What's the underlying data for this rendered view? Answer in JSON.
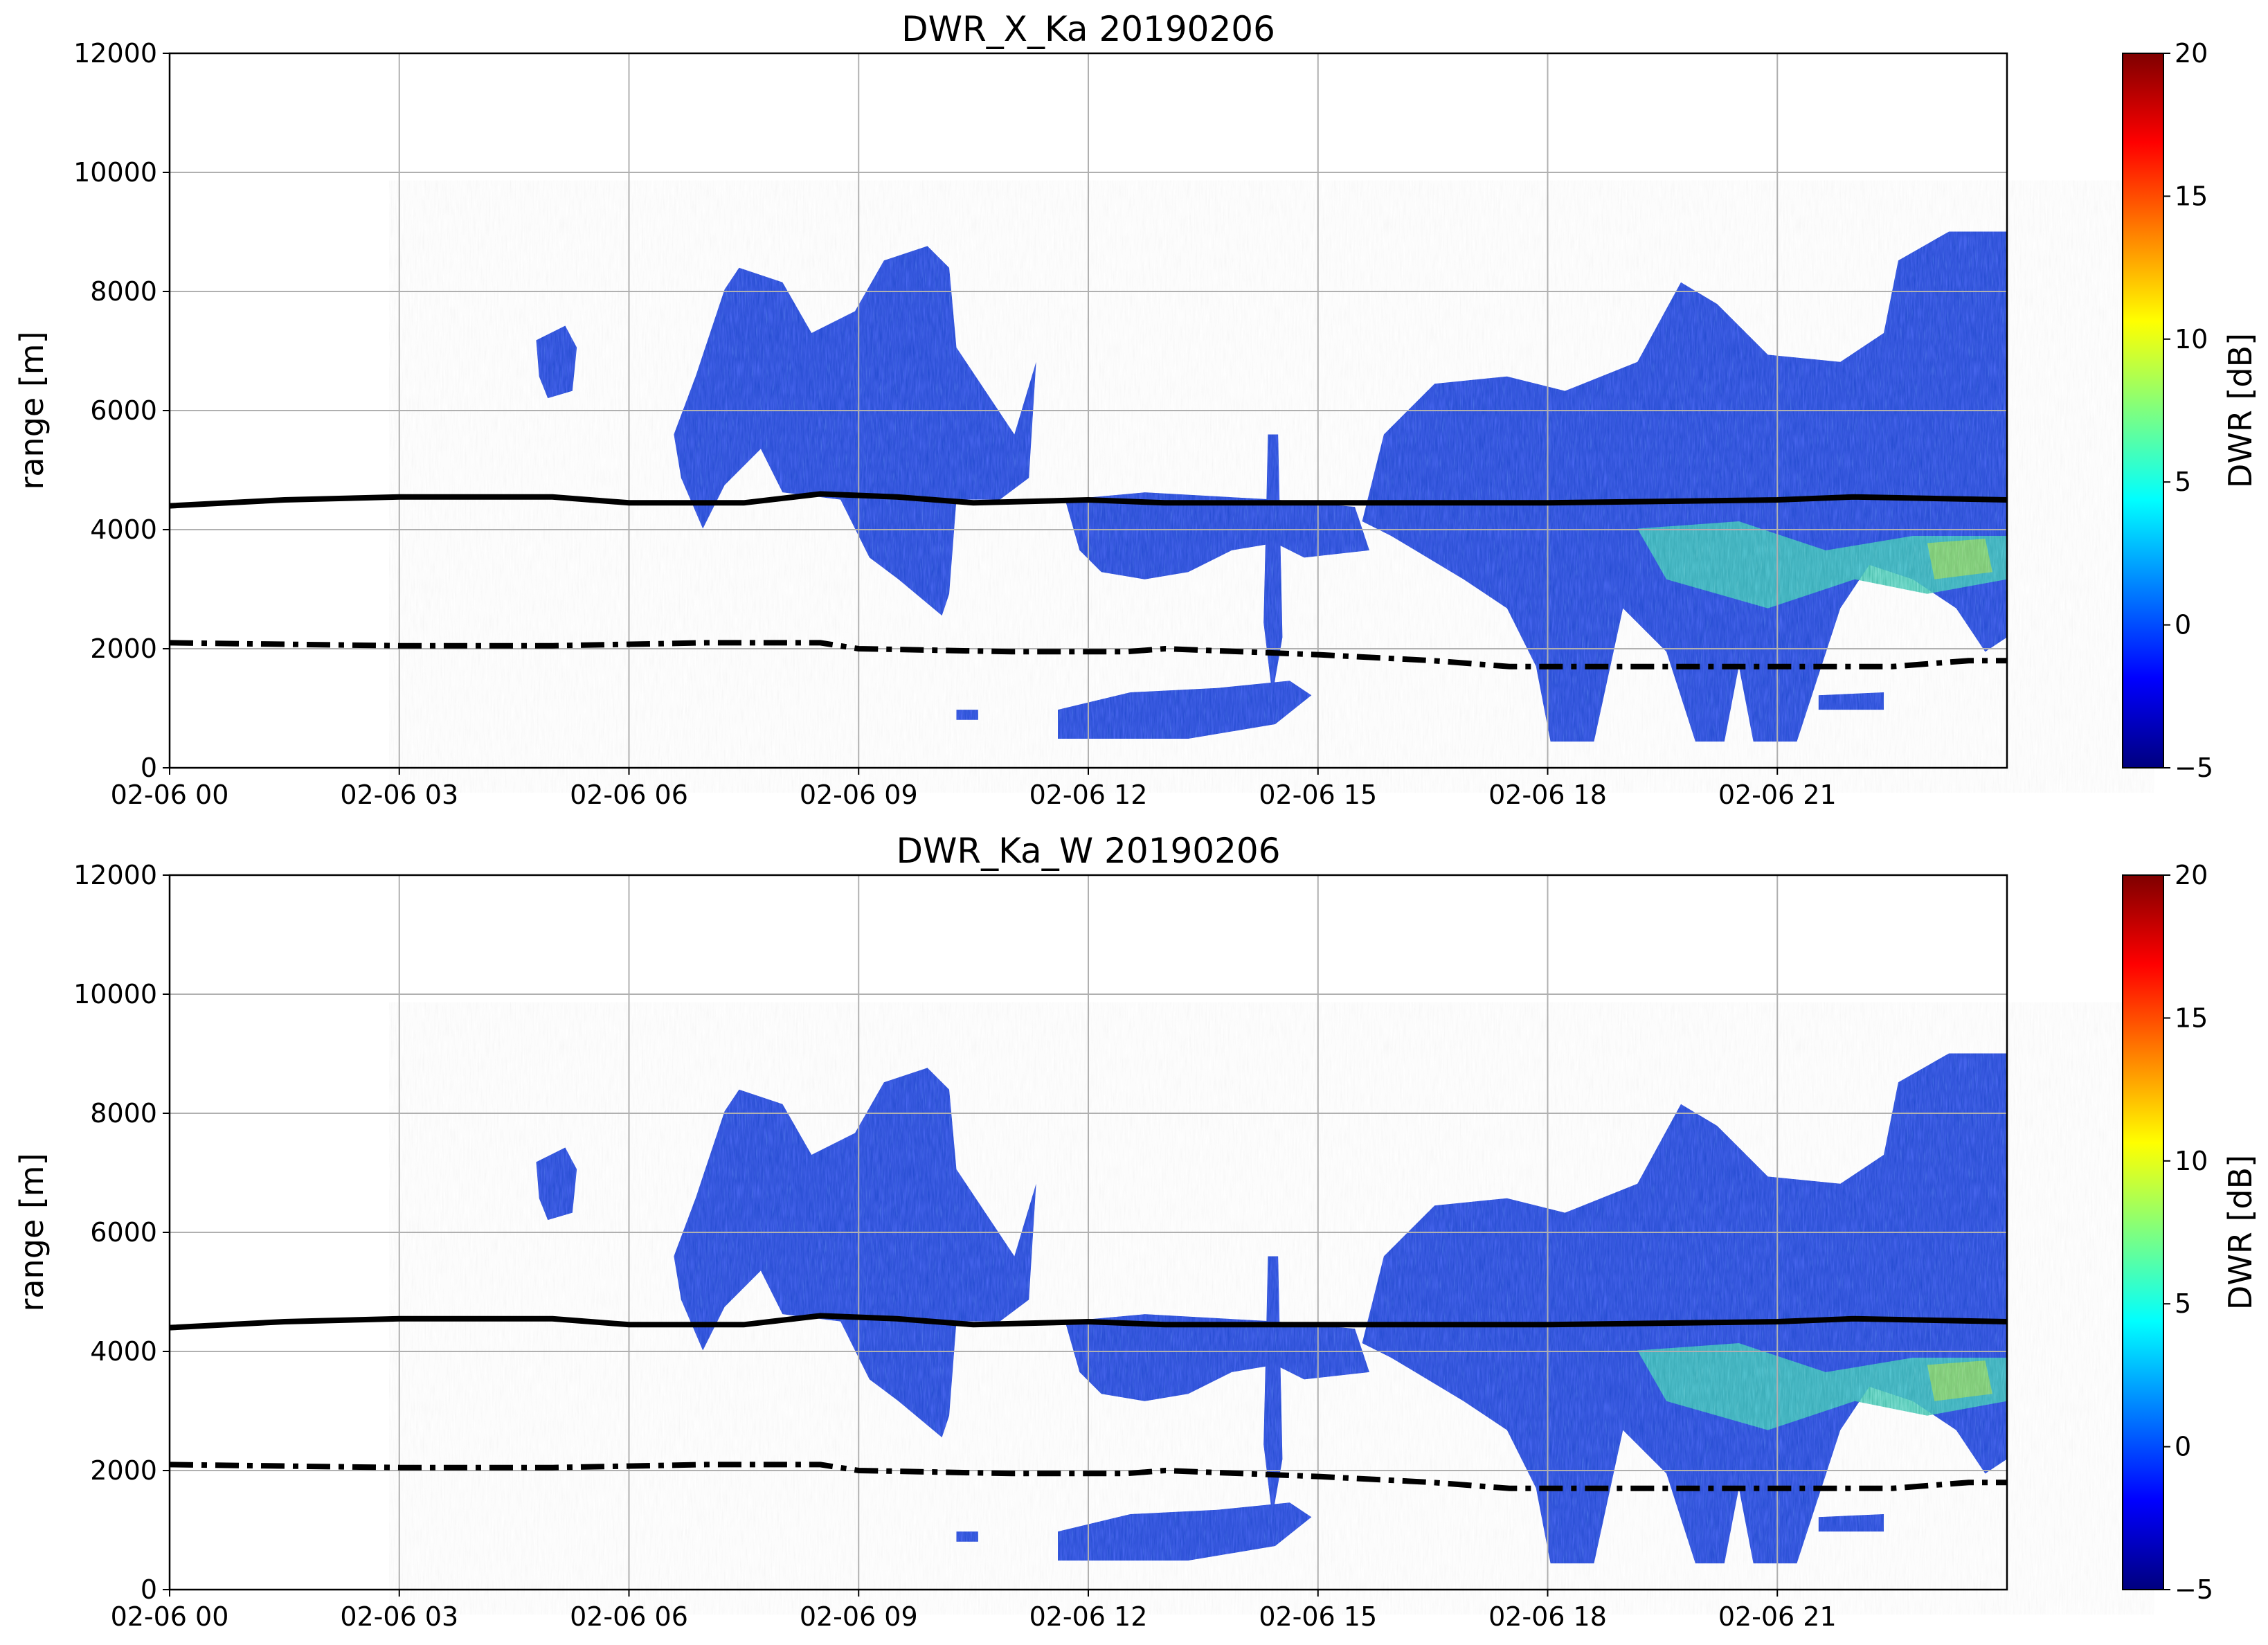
{
  "chart_data": [
    {
      "type": "heatmap",
      "title": "DWR_X_Ka 20190206",
      "ylabel": "range [m]",
      "colorbar_label": "DWR [dB]",
      "colormap": "jet",
      "grid": true,
      "xlim": [
        0,
        24
      ],
      "xticks": [
        {
          "value": 0,
          "label": "02-06 00"
        },
        {
          "value": 3,
          "label": "02-06 03"
        },
        {
          "value": 6,
          "label": "02-06 06"
        },
        {
          "value": 9,
          "label": "02-06 09"
        },
        {
          "value": 12,
          "label": "02-06 12"
        },
        {
          "value": 15,
          "label": "02-06 15"
        },
        {
          "value": 18,
          "label": "02-06 18"
        },
        {
          "value": 21,
          "label": "02-06 21"
        }
      ],
      "ylim": [
        0,
        12000
      ],
      "yticks": [
        0,
        2000,
        4000,
        6000,
        8000,
        10000,
        12000
      ],
      "clim": [
        -5,
        20
      ],
      "cticks": [
        {
          "value": -5,
          "label": "−5"
        },
        0,
        5,
        10,
        15,
        20
      ],
      "series": [
        {
          "style": "solid",
          "color": "#000000",
          "x": [
            0,
            1.5,
            3,
            5,
            6,
            7.5,
            8.5,
            9.5,
            10.5,
            12,
            13,
            18,
            21,
            22,
            24
          ],
          "values": [
            4400,
            4500,
            4550,
            4550,
            4450,
            4450,
            4600,
            4550,
            4450,
            4500,
            4450,
            4450,
            4500,
            4550,
            4500
          ]
        },
        {
          "style": "dashdot",
          "color": "#000000",
          "x": [
            0,
            3,
            5,
            7,
            8.5,
            9,
            11,
            12.5,
            13,
            15,
            16.5,
            17.5,
            21,
            22.5,
            23.5,
            24
          ],
          "values": [
            2100,
            2050,
            2050,
            2100,
            2100,
            2000,
            1950,
            1950,
            2000,
            1900,
            1800,
            1700,
            1700,
            1700,
            1800,
            1800
          ]
        }
      ]
    },
    {
      "type": "heatmap",
      "title": "DWR_Ka_W 20190206",
      "ylabel": "range [m]",
      "colorbar_label": "DWR [dB]",
      "colormap": "jet",
      "grid": true,
      "xlim": [
        0,
        24
      ],
      "xticks": [
        {
          "value": 0,
          "label": "02-06 00"
        },
        {
          "value": 3,
          "label": "02-06 03"
        },
        {
          "value": 6,
          "label": "02-06 06"
        },
        {
          "value": 9,
          "label": "02-06 09"
        },
        {
          "value": 12,
          "label": "02-06 12"
        },
        {
          "value": 15,
          "label": "02-06 15"
        },
        {
          "value": 18,
          "label": "02-06 18"
        },
        {
          "value": 21,
          "label": "02-06 21"
        }
      ],
      "ylim": [
        0,
        12000
      ],
      "yticks": [
        0,
        2000,
        4000,
        6000,
        8000,
        10000,
        12000
      ],
      "clim": [
        -5,
        20
      ],
      "cticks": [
        {
          "value": -5,
          "label": "−5"
        },
        0,
        5,
        10,
        15,
        20
      ],
      "series": [
        {
          "style": "solid",
          "color": "#000000",
          "x": [
            0,
            1.5,
            3,
            5,
            6,
            7.5,
            8.5,
            9.5,
            10.5,
            12,
            13,
            18,
            21,
            22,
            24
          ],
          "values": [
            4400,
            4500,
            4550,
            4550,
            4450,
            4450,
            4600,
            4550,
            4450,
            4500,
            4450,
            4450,
            4500,
            4550,
            4500
          ]
        },
        {
          "style": "dashdot",
          "color": "#000000",
          "x": [
            0,
            3,
            5,
            7,
            8.5,
            9,
            11,
            12.5,
            13,
            15,
            16.5,
            17.5,
            21,
            22.5,
            23.5,
            24
          ],
          "values": [
            2100,
            2050,
            2050,
            2100,
            2100,
            2000,
            1950,
            1950,
            2000,
            1900,
            1800,
            1700,
            1700,
            1700,
            1800,
            1800
          ]
        }
      ]
    }
  ]
}
